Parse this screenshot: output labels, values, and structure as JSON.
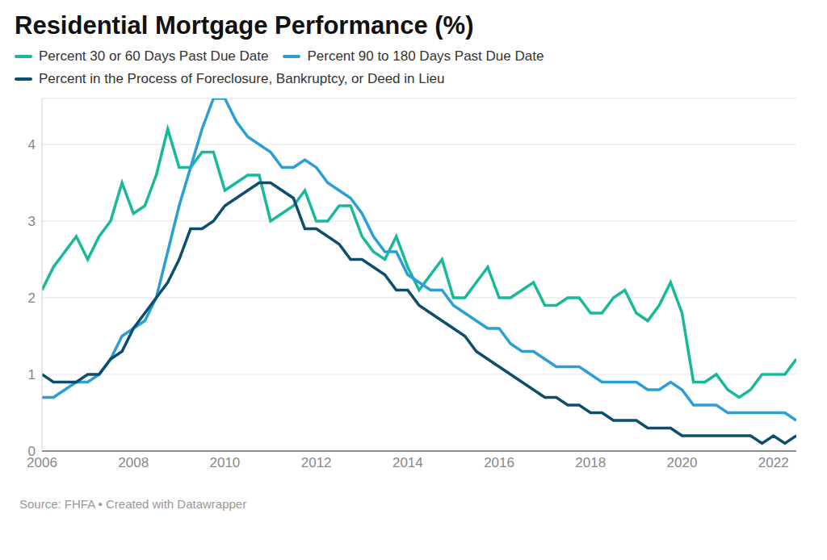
{
  "chart_data": {
    "type": "line",
    "title": "Residential Mortgage Performance (%)",
    "source": "Source: FHFA • Created with Datawrapper",
    "x": [
      2006,
      2006.25,
      2006.5,
      2006.75,
      2007,
      2007.25,
      2007.5,
      2007.75,
      2008,
      2008.25,
      2008.5,
      2008.75,
      2009,
      2009.25,
      2009.5,
      2009.75,
      2010,
      2010.25,
      2010.5,
      2010.75,
      2011,
      2011.25,
      2011.5,
      2011.75,
      2012,
      2012.25,
      2012.5,
      2012.75,
      2013,
      2013.25,
      2013.5,
      2013.75,
      2014,
      2014.25,
      2014.5,
      2014.75,
      2015,
      2015.25,
      2015.5,
      2015.75,
      2016,
      2016.25,
      2016.5,
      2016.75,
      2017,
      2017.25,
      2017.5,
      2017.75,
      2018,
      2018.25,
      2018.5,
      2018.75,
      2019,
      2019.25,
      2019.5,
      2019.75,
      2020,
      2020.25,
      2020.5,
      2020.75,
      2021,
      2021.25,
      2021.5,
      2021.75,
      2022,
      2022.25,
      2022.5
    ],
    "series": [
      {
        "name": "Percent 30 or 60 Days Past Due Date",
        "color": "#18b99a",
        "values": [
          2.1,
          2.4,
          2.6,
          2.8,
          2.5,
          2.8,
          3.0,
          3.5,
          3.1,
          3.2,
          3.6,
          4.2,
          3.7,
          3.7,
          3.9,
          3.9,
          3.4,
          3.5,
          3.6,
          3.6,
          3.0,
          3.1,
          3.2,
          3.4,
          3.0,
          3.0,
          3.2,
          3.2,
          2.8,
          2.6,
          2.5,
          2.8,
          2.4,
          2.1,
          2.3,
          2.5,
          2.0,
          2.0,
          2.2,
          2.4,
          2.0,
          2.0,
          2.1,
          2.2,
          1.9,
          1.9,
          2.0,
          2.0,
          1.8,
          1.8,
          2.0,
          2.1,
          1.8,
          1.7,
          1.9,
          2.2,
          1.8,
          0.9,
          0.9,
          1.0,
          0.8,
          0.7,
          0.8,
          1.0,
          1.0,
          1.0,
          1.2
        ]
      },
      {
        "name": "Percent 90 to 180 Days Past Due Date",
        "color": "#2b9fd4",
        "values": [
          0.7,
          0.7,
          0.8,
          0.9,
          0.9,
          1.0,
          1.2,
          1.5,
          1.6,
          1.7,
          2.0,
          2.6,
          3.2,
          3.7,
          4.2,
          4.6,
          4.6,
          4.3,
          4.1,
          4.0,
          3.9,
          3.7,
          3.7,
          3.8,
          3.7,
          3.5,
          3.4,
          3.3,
          3.1,
          2.8,
          2.6,
          2.6,
          2.3,
          2.2,
          2.1,
          2.1,
          1.9,
          1.8,
          1.7,
          1.6,
          1.6,
          1.4,
          1.3,
          1.3,
          1.2,
          1.1,
          1.1,
          1.1,
          1.0,
          0.9,
          0.9,
          0.9,
          0.9,
          0.8,
          0.8,
          0.9,
          0.8,
          0.6,
          0.6,
          0.6,
          0.5,
          0.5,
          0.5,
          0.5,
          0.5,
          0.5,
          0.4
        ]
      },
      {
        "name": "Percent in the Process of Foreclosure, Bankruptcy, or Deed in Lieu",
        "color": "#0d4d6e",
        "values": [
          1.0,
          0.9,
          0.9,
          0.9,
          1.0,
          1.0,
          1.2,
          1.3,
          1.6,
          1.8,
          2.0,
          2.2,
          2.5,
          2.9,
          2.9,
          3.0,
          3.2,
          3.3,
          3.4,
          3.5,
          3.5,
          3.4,
          3.3,
          2.9,
          2.9,
          2.8,
          2.7,
          2.5,
          2.5,
          2.4,
          2.3,
          2.1,
          2.1,
          1.9,
          1.8,
          1.7,
          1.6,
          1.5,
          1.3,
          1.2,
          1.1,
          1.0,
          0.9,
          0.8,
          0.7,
          0.7,
          0.6,
          0.6,
          0.5,
          0.5,
          0.4,
          0.4,
          0.4,
          0.3,
          0.3,
          0.3,
          0.2,
          0.2,
          0.2,
          0.2,
          0.2,
          0.2,
          0.2,
          0.1,
          0.2,
          0.1,
          0.2
        ]
      }
    ],
    "xlim": [
      2006,
      2022.5
    ],
    "xticks": [
      2006,
      2008,
      2010,
      2012,
      2014,
      2016,
      2018,
      2020,
      2022
    ],
    "ylim": [
      0,
      4.6
    ],
    "yticks": [
      0,
      1,
      2,
      3,
      4
    ],
    "grid": true
  }
}
